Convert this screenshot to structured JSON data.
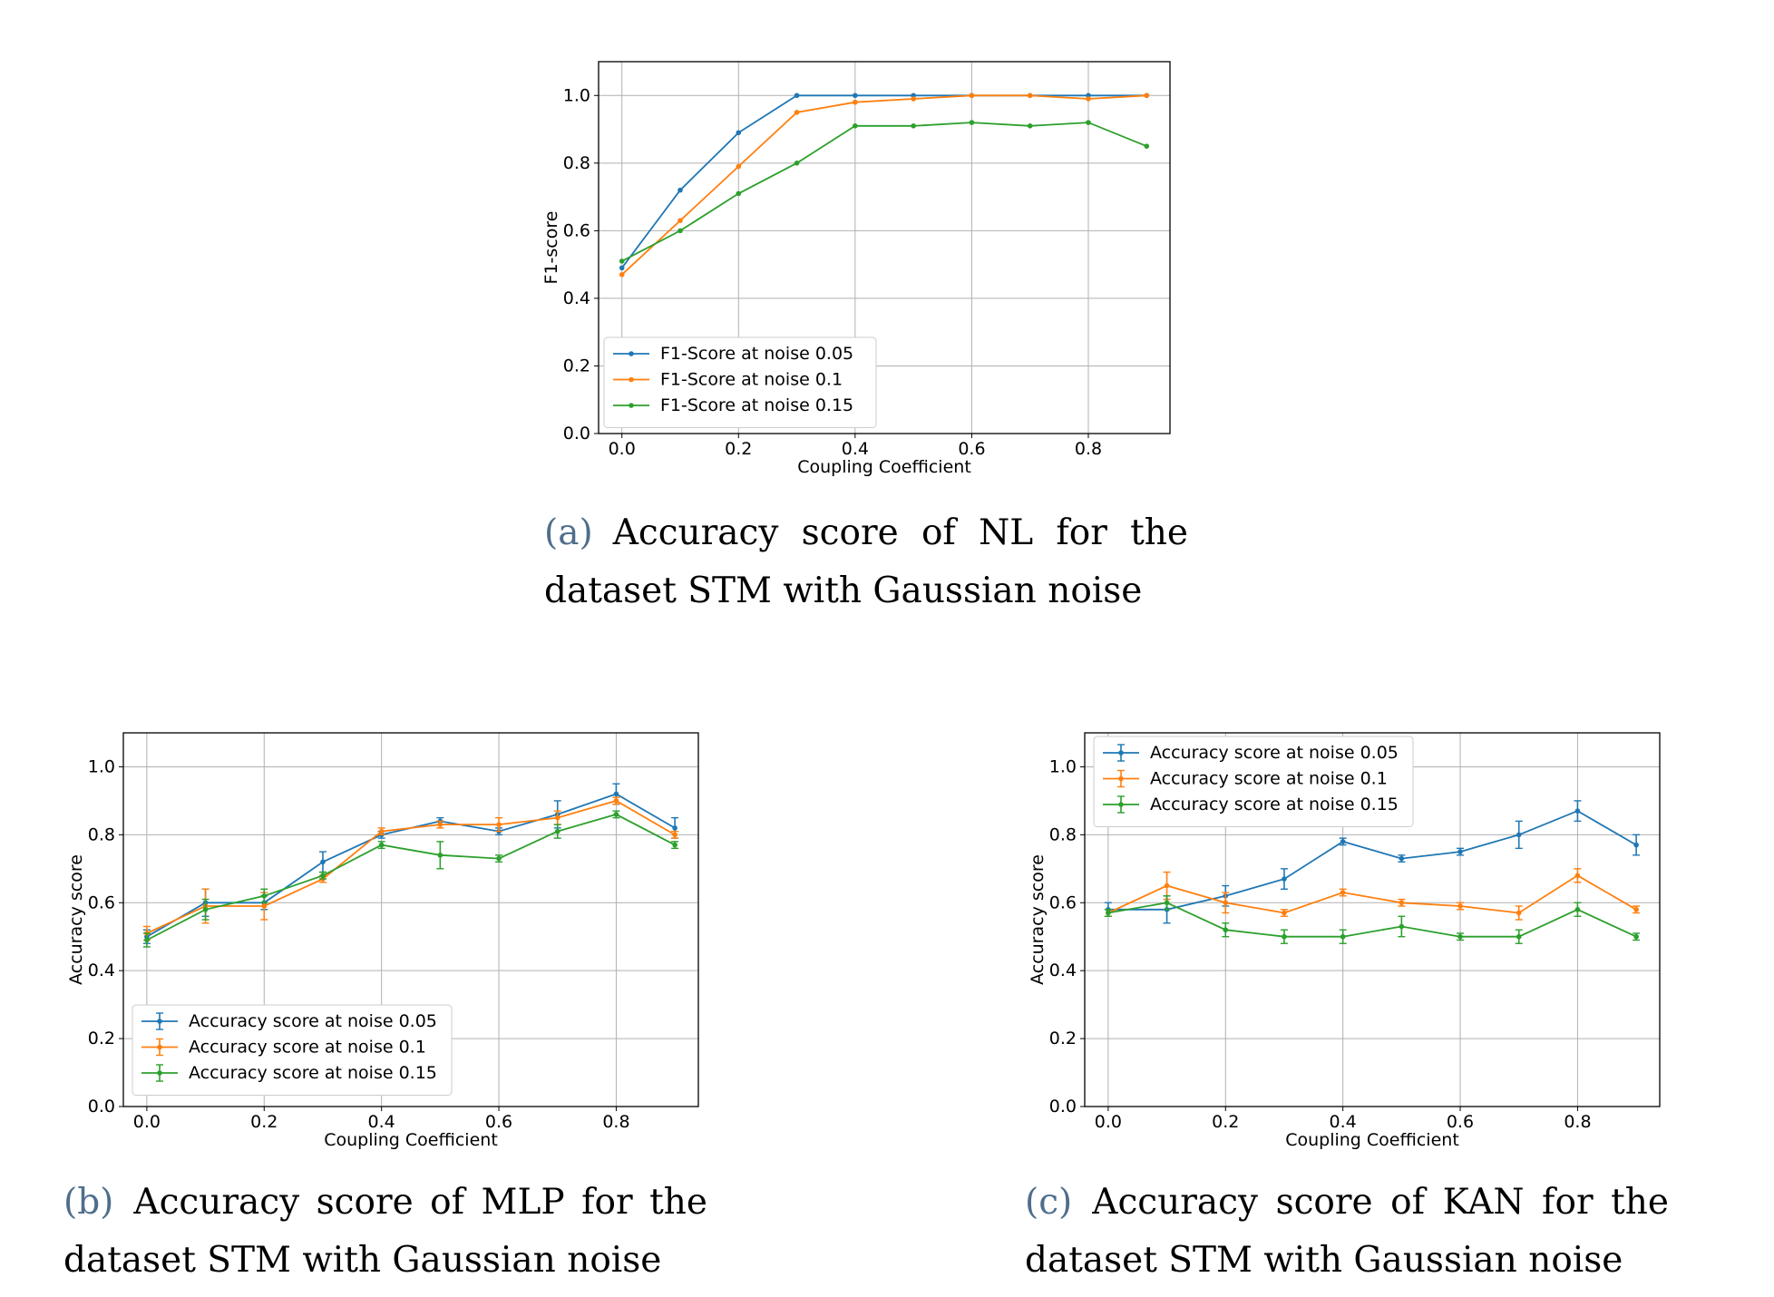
{
  "chart_data": [
    {
      "type": "line",
      "ylabel": "F1-score",
      "xlabel": "Coupling Coefficient",
      "xlim": [
        -0.04,
        0.94
      ],
      "ylim": [
        0.0,
        1.1
      ],
      "xticks": [
        "0.0",
        "0.2",
        "0.4",
        "0.6",
        "0.8"
      ],
      "yticks": [
        "0.0",
        "0.2",
        "0.4",
        "0.6",
        "0.8",
        "1.0"
      ],
      "grid": true,
      "legend_position": "lower-left",
      "x": [
        0.0,
        0.1,
        0.2,
        0.3,
        0.4,
        0.5,
        0.6,
        0.7,
        0.8,
        0.9
      ],
      "series": [
        {
          "name": "F1-Score at noise 0.05",
          "color": "#1f77b4",
          "values": [
            0.49,
            0.72,
            0.89,
            1.0,
            1.0,
            1.0,
            1.0,
            1.0,
            1.0,
            1.0
          ]
        },
        {
          "name": "F1-Score at noise 0.1",
          "color": "#ff7f0e",
          "values": [
            0.47,
            0.63,
            0.79,
            0.95,
            0.98,
            0.99,
            1.0,
            1.0,
            0.99,
            1.0
          ]
        },
        {
          "name": "F1-Score at noise 0.15",
          "color": "#2ca02c",
          "values": [
            0.51,
            0.6,
            0.71,
            0.8,
            0.91,
            0.91,
            0.92,
            0.91,
            0.92,
            0.85
          ]
        }
      ],
      "caption_letter": "(a)",
      "caption_line1": "Accuracy score of NL for the",
      "caption_line2": "dataset STM with Gaussian noise"
    },
    {
      "type": "line",
      "ylabel": "Accuracy score",
      "xlabel": "Coupling Coefficient",
      "xlim": [
        -0.04,
        0.94
      ],
      "ylim": [
        0.0,
        1.1
      ],
      "xticks": [
        "0.0",
        "0.2",
        "0.4",
        "0.6",
        "0.8"
      ],
      "yticks": [
        "0.0",
        "0.2",
        "0.4",
        "0.6",
        "0.8",
        "1.0"
      ],
      "grid": true,
      "legend_position": "lower-left",
      "x": [
        0.0,
        0.1,
        0.2,
        0.3,
        0.4,
        0.5,
        0.6,
        0.7,
        0.8,
        0.9
      ],
      "series": [
        {
          "name": "Accuracy score at noise 0.05",
          "color": "#1f77b4",
          "values": [
            0.5,
            0.6,
            0.6,
            0.72,
            0.8,
            0.84,
            0.81,
            0.86,
            0.92,
            0.82
          ],
          "errors": [
            0.02,
            0.04,
            0.02,
            0.03,
            0.01,
            0.01,
            0.01,
            0.04,
            0.03,
            0.03
          ]
        },
        {
          "name": "Accuracy score at noise 0.1",
          "color": "#ff7f0e",
          "values": [
            0.51,
            0.59,
            0.59,
            0.67,
            0.81,
            0.83,
            0.83,
            0.85,
            0.9,
            0.8
          ],
          "errors": [
            0.02,
            0.05,
            0.04,
            0.01,
            0.01,
            0.01,
            0.02,
            0.02,
            0.01,
            0.01
          ]
        },
        {
          "name": "Accuracy score at noise 0.15",
          "color": "#2ca02c",
          "values": [
            0.49,
            0.58,
            0.62,
            0.68,
            0.77,
            0.74,
            0.73,
            0.81,
            0.86,
            0.77
          ],
          "errors": [
            0.02,
            0.03,
            0.02,
            0.01,
            0.01,
            0.04,
            0.01,
            0.02,
            0.01,
            0.01
          ]
        }
      ],
      "caption_letter": "(b)",
      "caption_line1": "Accuracy score of MLP for the",
      "caption_line2": "dataset STM with Gaussian noise"
    },
    {
      "type": "line",
      "ylabel": "Accuracy score",
      "xlabel": "Coupling Coefficient",
      "xlim": [
        -0.04,
        0.94
      ],
      "ylim": [
        0.0,
        1.1
      ],
      "xticks": [
        "0.0",
        "0.2",
        "0.4",
        "0.6",
        "0.8"
      ],
      "yticks": [
        "0.0",
        "0.2",
        "0.4",
        "0.6",
        "0.8",
        "1.0"
      ],
      "grid": true,
      "legend_position": "upper-left",
      "x": [
        0.0,
        0.1,
        0.2,
        0.3,
        0.4,
        0.5,
        0.6,
        0.7,
        0.8,
        0.9
      ],
      "series": [
        {
          "name": "Accuracy score at noise 0.05",
          "color": "#1f77b4",
          "values": [
            0.58,
            0.58,
            0.62,
            0.67,
            0.78,
            0.73,
            0.75,
            0.8,
            0.87,
            0.77
          ],
          "errors": [
            0.02,
            0.04,
            0.03,
            0.03,
            0.01,
            0.01,
            0.01,
            0.04,
            0.03,
            0.03
          ]
        },
        {
          "name": "Accuracy score at noise 0.1",
          "color": "#ff7f0e",
          "values": [
            0.57,
            0.65,
            0.6,
            0.57,
            0.63,
            0.6,
            0.59,
            0.57,
            0.68,
            0.58
          ],
          "errors": [
            0.01,
            0.04,
            0.03,
            0.01,
            0.01,
            0.01,
            0.01,
            0.02,
            0.02,
            0.01
          ]
        },
        {
          "name": "Accuracy score at noise 0.15",
          "color": "#2ca02c",
          "values": [
            0.57,
            0.6,
            0.52,
            0.5,
            0.5,
            0.53,
            0.5,
            0.5,
            0.58,
            0.5
          ],
          "errors": [
            0.01,
            0.02,
            0.02,
            0.02,
            0.02,
            0.03,
            0.01,
            0.02,
            0.02,
            0.01
          ]
        }
      ],
      "caption_letter": "(c)",
      "caption_line1": "Accuracy score of KAN for the",
      "caption_line2": "dataset STM with Gaussian noise"
    }
  ]
}
